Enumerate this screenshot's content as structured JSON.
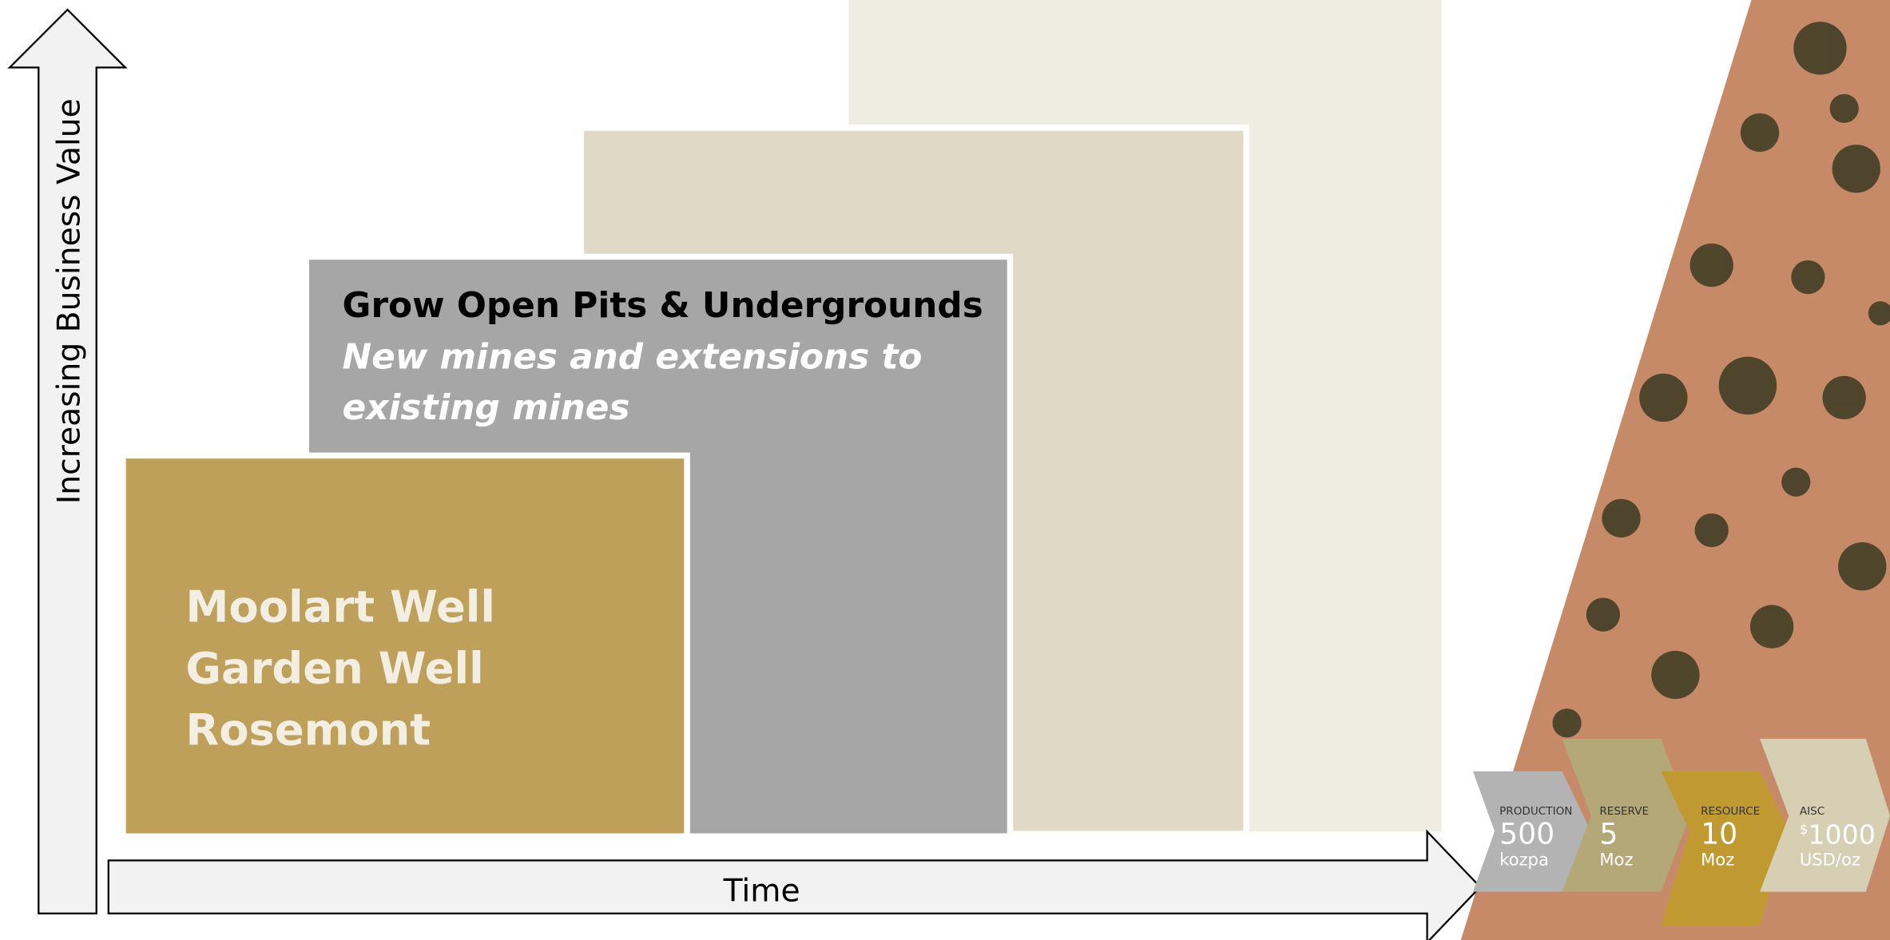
{
  "axes": {
    "y_label": "Increasing Business Value",
    "x_label": "Time"
  },
  "blocks": [
    {
      "lines": [
        "Moolart Well",
        "Garden Well",
        "Rosemont"
      ]
    },
    {
      "title": "Grow Open Pits & Undergrounds",
      "subtitle_lines": [
        "New mines and extensions to",
        "existing mines"
      ]
    }
  ],
  "metrics": [
    {
      "label": "PRODUCTION",
      "value": "500",
      "unit": "kozpa"
    },
    {
      "label": "RESERVE",
      "value": "5",
      "unit": "Moz"
    },
    {
      "label": "RESOURCE",
      "value": "10",
      "unit": "Moz"
    },
    {
      "label": "AISC",
      "currency": "$",
      "value": "1000",
      "unit": "USD/oz"
    }
  ]
}
